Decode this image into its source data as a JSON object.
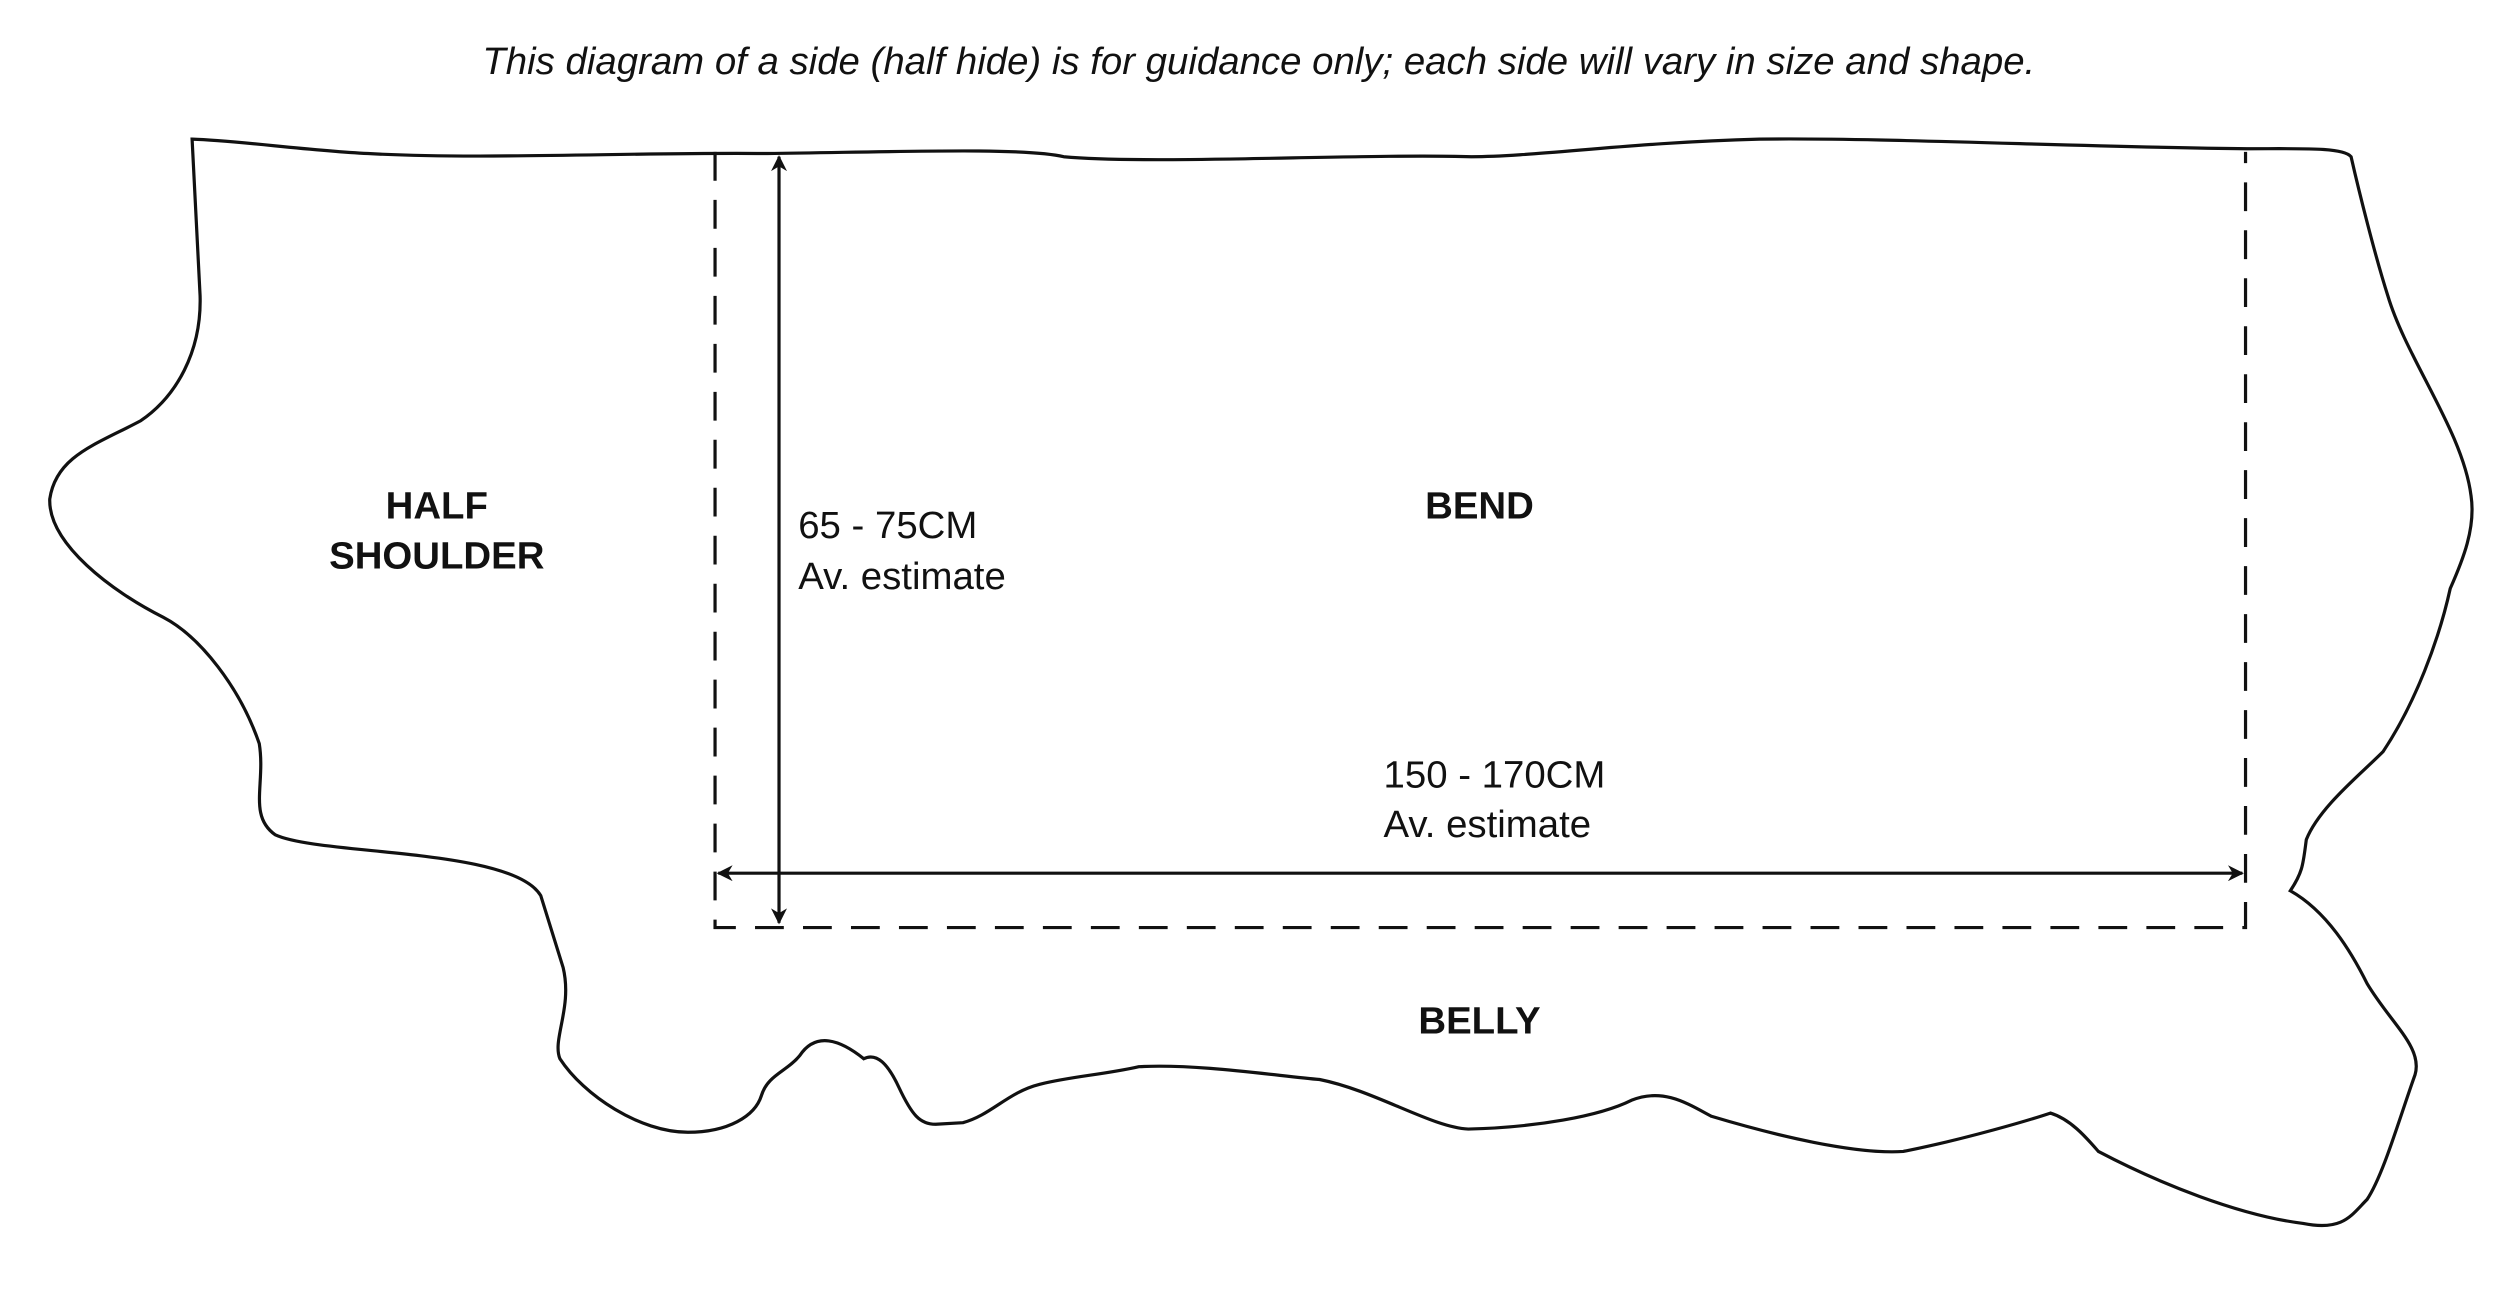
{
  "caption": "This diagram of a side (half hide) is for guidance only; each side will vary in size and shape.",
  "regions": {
    "half_shoulder": [
      "HALF",
      "SHOULDER"
    ],
    "bend": "BEND",
    "belly": "BELLY"
  },
  "dimensions": {
    "height": {
      "range": "65 - 75CM",
      "note": "Av. estimate"
    },
    "width": {
      "range": "150 - 170CM",
      "note": "Av. estimate"
    }
  }
}
